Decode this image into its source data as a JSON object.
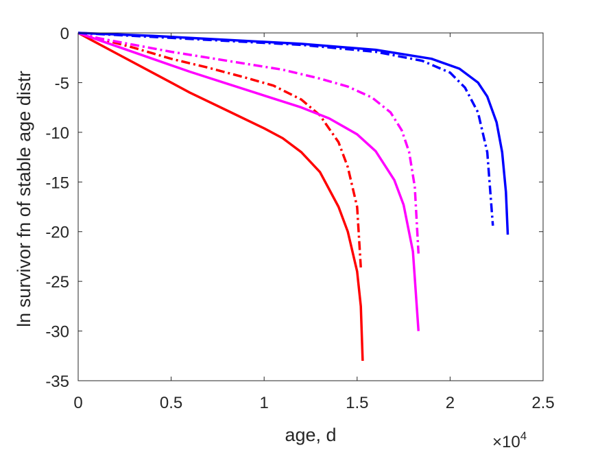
{
  "chart_data": {
    "type": "line",
    "title": "",
    "xlabel": "age, d",
    "ylabel": "ln survivor fn of stable age distr",
    "x_multiplier_label": "×10",
    "x_multiplier_exponent": "4",
    "xlim": [
      0,
      25000
    ],
    "ylim": [
      -35,
      0
    ],
    "xticks": [
      0,
      5000,
      10000,
      15000,
      20000,
      25000
    ],
    "xtick_labels": [
      "0",
      "0.5",
      "1",
      "1.5",
      "2",
      "2.5"
    ],
    "yticks": [
      0,
      -5,
      -10,
      -15,
      -20,
      -25,
      -30,
      -35
    ],
    "ytick_labels": [
      "0",
      "-5",
      "-10",
      "-15",
      "-20",
      "-25",
      "-30",
      "-35"
    ],
    "grid": false,
    "legend": "none",
    "series": [
      {
        "color": "#ff0000",
        "style": "solid",
        "x": [
          0,
          2000,
          4000,
          6000,
          8000,
          10000,
          11000,
          12000,
          13000,
          14000,
          14500,
          15000,
          15200,
          15300
        ],
        "y": [
          0,
          -2,
          -4,
          -6,
          -7.8,
          -9.6,
          -10.6,
          -12,
          -14,
          -17.5,
          -20,
          -24,
          -27.5,
          -33
        ]
      },
      {
        "color": "#ff0000",
        "style": "dashdot",
        "x": [
          0,
          1000,
          3000,
          5000,
          7000,
          9000,
          10500,
          12000,
          13000,
          14000,
          14500,
          15000,
          15200
        ],
        "y": [
          0,
          -0.5,
          -1.5,
          -2.6,
          -3.5,
          -4.5,
          -5.3,
          -6.7,
          -8.3,
          -11,
          -13.5,
          -17.5,
          -23.6
        ]
      },
      {
        "color": "#ff00ff",
        "style": "solid",
        "x": [
          0,
          2000,
          4000,
          6000,
          8000,
          10000,
          12000,
          13500,
          15000,
          16000,
          17000,
          17500,
          18000,
          18300
        ],
        "y": [
          0,
          -1.3,
          -2.6,
          -3.9,
          -5.1,
          -6.3,
          -7.5,
          -8.6,
          -10.2,
          -11.9,
          -14.8,
          -17.3,
          -22,
          -30
        ]
      },
      {
        "color": "#ff00ff",
        "style": "dashdot",
        "x": [
          0,
          1000,
          3000,
          5000,
          7000,
          9000,
          11000,
          13000,
          14500,
          15800,
          16800,
          17400,
          17800,
          18100,
          18300
        ],
        "y": [
          0,
          -0.5,
          -1.2,
          -1.9,
          -2.5,
          -3.1,
          -3.7,
          -4.6,
          -5.4,
          -6.5,
          -8,
          -9.8,
          -12,
          -15.5,
          -22.2
        ]
      },
      {
        "color": "#0000ff",
        "style": "solid",
        "x": [
          0,
          4000,
          8000,
          12000,
          16000,
          19000,
          20500,
          21500,
          22000,
          22500,
          22800,
          23000,
          23100
        ],
        "y": [
          0,
          -0.3,
          -0.7,
          -1.1,
          -1.7,
          -2.6,
          -3.6,
          -5,
          -6.4,
          -9,
          -12,
          -16,
          -20.3
        ]
      },
      {
        "color": "#0000ff",
        "style": "dashdot",
        "x": [
          0,
          4000,
          8000,
          12000,
          16000,
          18500,
          20000,
          20800,
          21500,
          22000,
          22300
        ],
        "y": [
          0,
          -0.4,
          -0.8,
          -1.2,
          -1.9,
          -2.8,
          -4,
          -5.5,
          -8,
          -12,
          -19.4
        ]
      }
    ]
  }
}
